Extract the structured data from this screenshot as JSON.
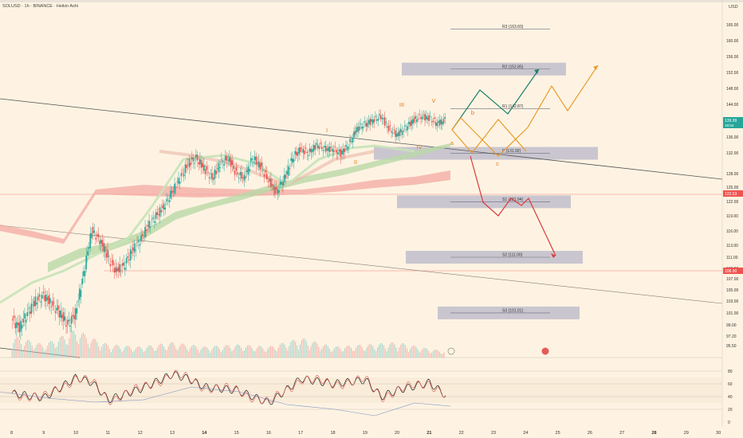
{
  "header": {
    "symbol_line": "SOLUSD · 1h · BINANCE · Heikin Ashi",
    "currency": "USD"
  },
  "chart_data": {
    "type": "candlestick",
    "symbol": "SOLUSD",
    "interval": "1h",
    "exchange": "BINANCE",
    "style": "Heikin Ashi",
    "price_axis": {
      "ticks": [
        165.0,
        160.0,
        156.0,
        152.0,
        148.0,
        144.0,
        140.0,
        136.0,
        132.0,
        128.0,
        125.0,
        122.0,
        119.0,
        116.0,
        113.0,
        111.0,
        109.0,
        107.0,
        105.0,
        103.0,
        101.0,
        99.0,
        97.2,
        95.5
      ]
    },
    "time_axis": {
      "ticks": [
        "8",
        "9",
        "10",
        "11",
        "12",
        "13",
        "14",
        "15",
        "16",
        "17",
        "18",
        "19",
        "20",
        "21",
        "22",
        "23",
        "24",
        "25",
        "26",
        "27",
        "28",
        "29",
        "30"
      ],
      "bold": [
        "14",
        "21",
        "28"
      ]
    },
    "price_labels": [
      {
        "value": "139.99",
        "sub": "18:04",
        "color": "#26a69a"
      },
      {
        "value": "123.53",
        "color": "#ef5350"
      },
      {
        "value": "108.90",
        "color": "#ef5350"
      }
    ],
    "levels": [
      {
        "label": "R3 (163.60)",
        "price": 163.6,
        "zone": false
      },
      {
        "label": "R2 (152.85)",
        "price": 152.85,
        "zone": true
      },
      {
        "label": "R1 (142.87)",
        "price": 142.87,
        "zone": false
      },
      {
        "label": "P (131.92)",
        "price": 131.92,
        "zone": true
      },
      {
        "label": "S1 (121.94)",
        "price": 121.94,
        "zone": true
      },
      {
        "label": "S2 (111.00)",
        "price": 111.0,
        "zone": true
      },
      {
        "label": "S3 (101.01)",
        "price": 101.01,
        "zone": true
      }
    ],
    "wave_labels": [
      "I",
      "II",
      "III",
      "IV",
      "V",
      "a",
      "b",
      "c",
      "i"
    ],
    "series": [
      {
        "name": "candles",
        "kind": "heikin-ashi",
        "values": [
          [
            0,
            100
          ],
          [
            0.25,
            98.5
          ],
          [
            0.5,
            101
          ],
          [
            0.75,
            103
          ],
          [
            1,
            104
          ],
          [
            1.25,
            102.5
          ],
          [
            1.5,
            101
          ],
          [
            1.75,
            99
          ],
          [
            2,
            101
          ],
          [
            2.25,
            108
          ],
          [
            2.5,
            116
          ],
          [
            2.75,
            114
          ],
          [
            3,
            111
          ],
          [
            3.25,
            108.5
          ],
          [
            3.5,
            109.5
          ],
          [
            3.75,
            112
          ],
          [
            4,
            114
          ],
          [
            4.25,
            117
          ],
          [
            4.5,
            119
          ],
          [
            4.75,
            121
          ],
          [
            5,
            124
          ],
          [
            5.25,
            127
          ],
          [
            5.5,
            130
          ],
          [
            5.75,
            131
          ],
          [
            6,
            129
          ],
          [
            6.25,
            127
          ],
          [
            6.5,
            130
          ],
          [
            6.75,
            131
          ],
          [
            7,
            128
          ],
          [
            7.25,
            127
          ],
          [
            7.5,
            131
          ],
          [
            7.75,
            129.5
          ],
          [
            8,
            126.5
          ],
          [
            8.25,
            124
          ],
          [
            8.5,
            127
          ],
          [
            8.75,
            131
          ],
          [
            9,
            133
          ],
          [
            9.25,
            132
          ],
          [
            9.5,
            134
          ],
          [
            9.75,
            133
          ],
          [
            10,
            133
          ],
          [
            10.25,
            132
          ],
          [
            10.5,
            134
          ],
          [
            10.75,
            138
          ],
          [
            11,
            139
          ],
          [
            11.25,
            140
          ],
          [
            11.5,
            141
          ],
          [
            11.75,
            138
          ],
          [
            12,
            136.5
          ],
          [
            12.25,
            138
          ],
          [
            12.5,
            140
          ],
          [
            12.75,
            141
          ],
          [
            13,
            140.5
          ],
          [
            13.25,
            139.2
          ],
          [
            13.5,
            139.99
          ]
        ]
      },
      {
        "name": "volume",
        "values": [
          [
            0,
            1.0
          ],
          [
            1,
            0.6
          ],
          [
            2,
            1.3
          ],
          [
            2.5,
            0.9
          ],
          [
            3,
            0.6
          ],
          [
            4,
            0.5
          ],
          [
            5,
            0.7
          ],
          [
            6,
            0.5
          ],
          [
            7,
            0.6
          ],
          [
            8,
            0.5
          ],
          [
            8.5,
            0.7
          ],
          [
            9,
            0.9
          ],
          [
            10,
            0.5
          ],
          [
            11,
            0.6
          ],
          [
            12,
            0.7
          ],
          [
            13,
            0.4
          ],
          [
            13.5,
            0.3
          ]
        ]
      },
      {
        "name": "RSI",
        "values": [
          [
            0,
            45
          ],
          [
            1,
            38
          ],
          [
            2,
            70
          ],
          [
            2.5,
            62
          ],
          [
            3,
            35
          ],
          [
            4,
            52
          ],
          [
            5,
            75
          ],
          [
            5.5,
            68
          ],
          [
            6,
            55
          ],
          [
            7,
            50
          ],
          [
            8,
            30
          ],
          [
            9,
            68
          ],
          [
            10,
            60
          ],
          [
            11,
            66
          ],
          [
            11.5,
            40
          ],
          [
            12,
            50
          ],
          [
            13,
            62
          ],
          [
            13.5,
            42
          ]
        ]
      }
    ],
    "oscillator_axis": {
      "ticks": [
        "80",
        "60",
        "40",
        "20",
        "0"
      ]
    }
  }
}
